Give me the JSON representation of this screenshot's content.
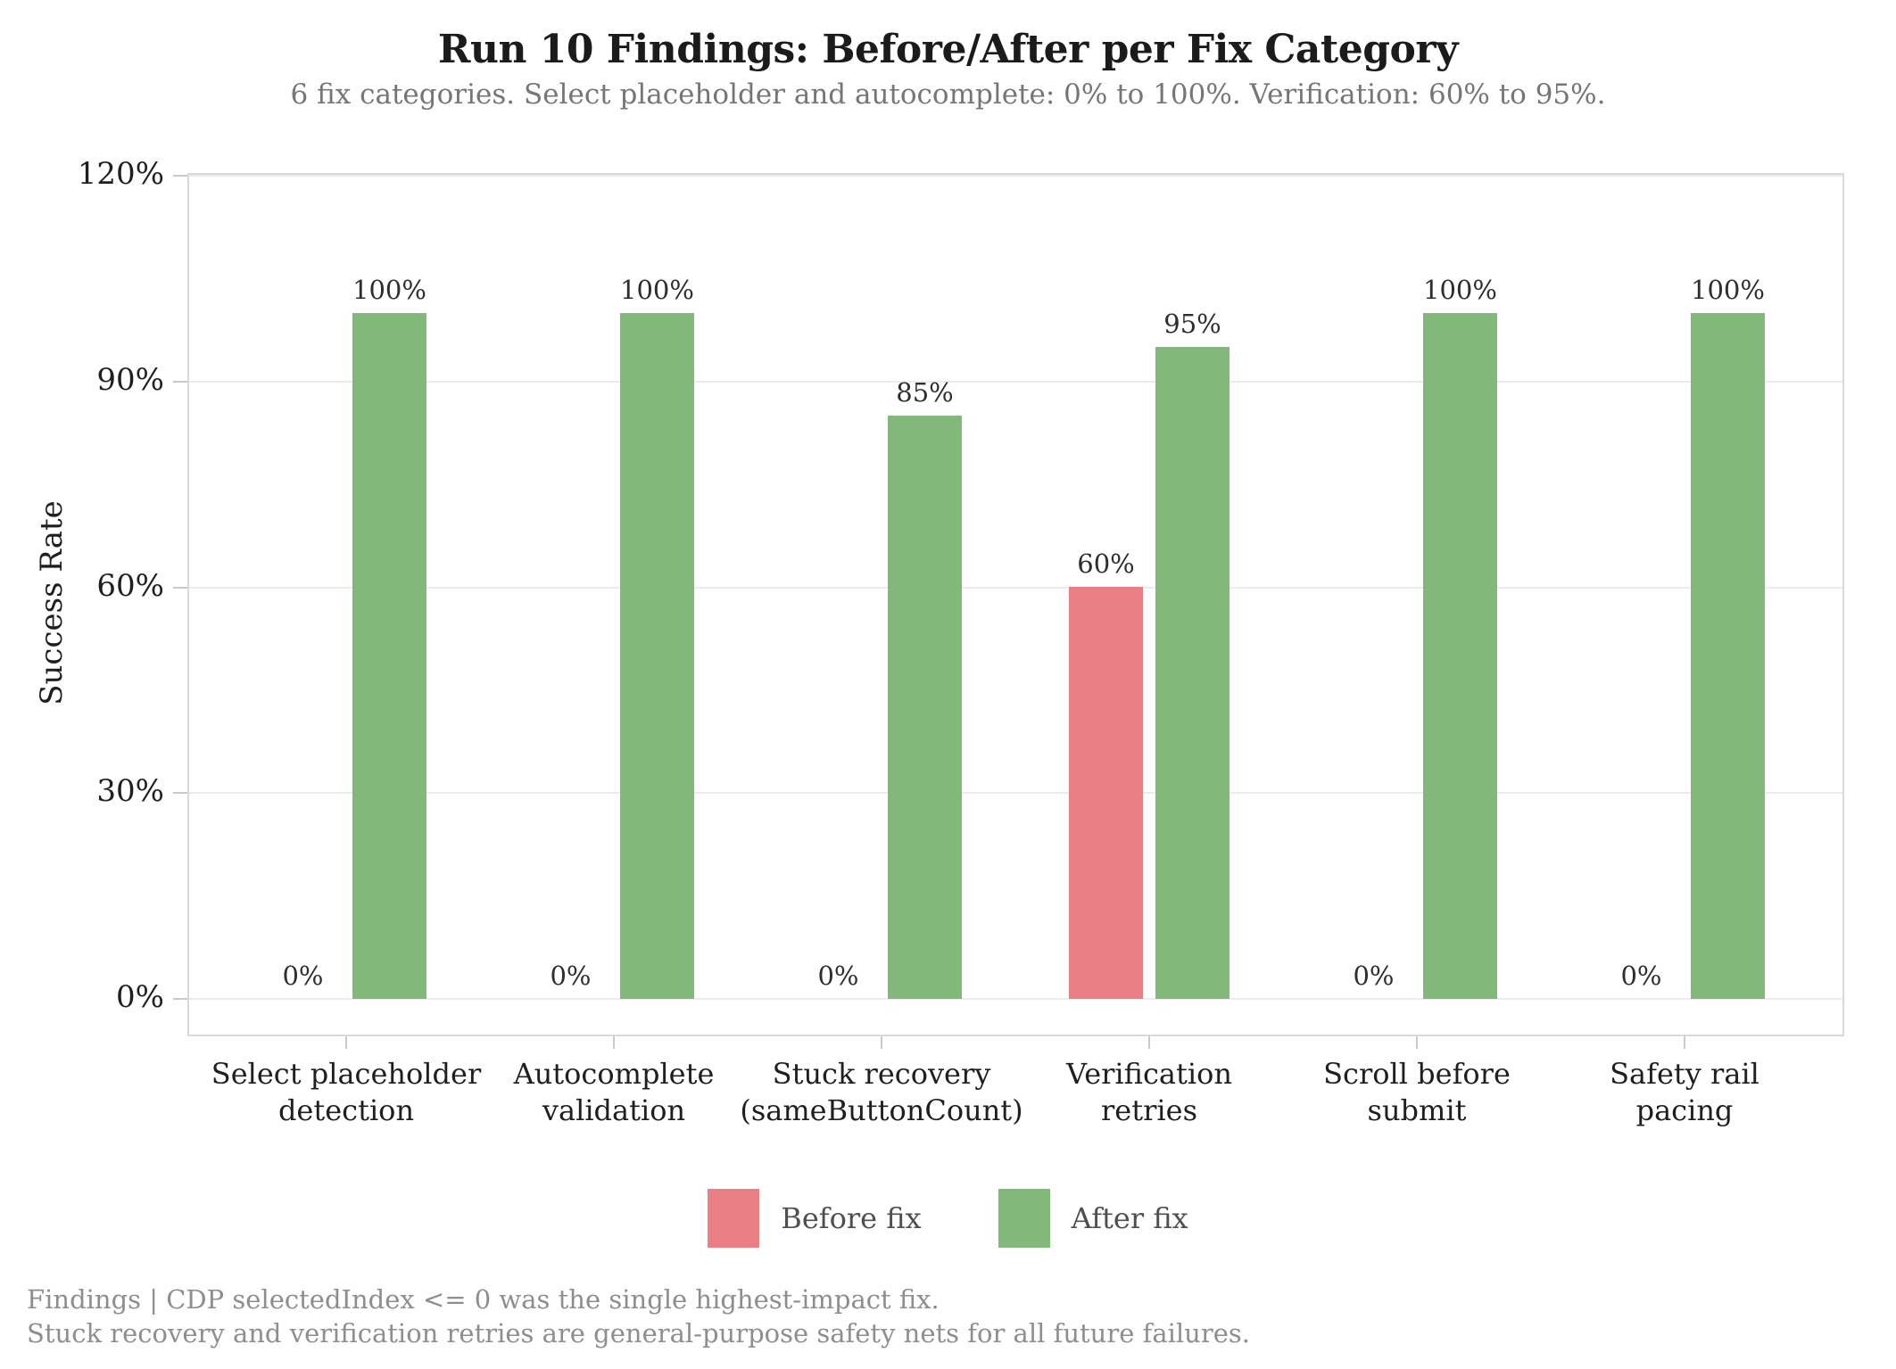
{
  "page": {
    "title": "Run 10 Findings: Before/After per Fix Category",
    "subtitle": "6 fix categories. Select placeholder and autocomplete: 0% to 100%. Verification: 60% to 95%.",
    "footer_lines": [
      "Findings | CDP selectedIndex <= 0 was the single highest-impact fix.",
      "Stuck recovery and verification retries are general-purpose safety nets for all future failures."
    ]
  },
  "chart_data": {
    "type": "bar",
    "title": "Run 10 Findings: Before/After per Fix Category",
    "subtitle": "6 fix categories. Select placeholder and autocomplete: 0% to 100%. Verification: 60% to 95%.",
    "categories": [
      "Select placeholder\ndetection",
      "Autocomplete\nvalidation",
      "Stuck recovery\n(sameButtonCount)",
      "Verification\nretries",
      "Scroll before\nsubmit",
      "Safety rail\npacing"
    ],
    "series": [
      {
        "name": "Before fix",
        "color": "#e97f84",
        "values": [
          0,
          0,
          0,
          60,
          0,
          0
        ],
        "labels": [
          "0%",
          "0%",
          "0%",
          "60%",
          "0%",
          "0%"
        ]
      },
      {
        "name": "After fix",
        "color": "#83b87b",
        "values": [
          100,
          100,
          85,
          95,
          100,
          100
        ],
        "labels": [
          "100%",
          "100%",
          "85%",
          "95%",
          "100%",
          "100%"
        ]
      }
    ],
    "xlabel": "",
    "ylabel": "Success Rate",
    "ylim": [
      0,
      120
    ],
    "yticks": [
      {
        "value": 0,
        "label": "0%"
      },
      {
        "value": 30,
        "label": "30%"
      },
      {
        "value": 60,
        "label": "60%"
      },
      {
        "value": 90,
        "label": "90%"
      },
      {
        "value": 120,
        "label": "120%"
      }
    ],
    "grid": true,
    "legend_position": "bottom"
  },
  "colors": {
    "before_fix": "#e97f84",
    "after_fix": "#83b87b",
    "grid": "#ececec",
    "frame": "#d9d9d9",
    "tick": "#c9c9c9",
    "title_text": "#1b1b1b",
    "subtitle_text": "#767676",
    "axis_text": "#1f1f1f",
    "footer_text": "#8e8e8e"
  }
}
